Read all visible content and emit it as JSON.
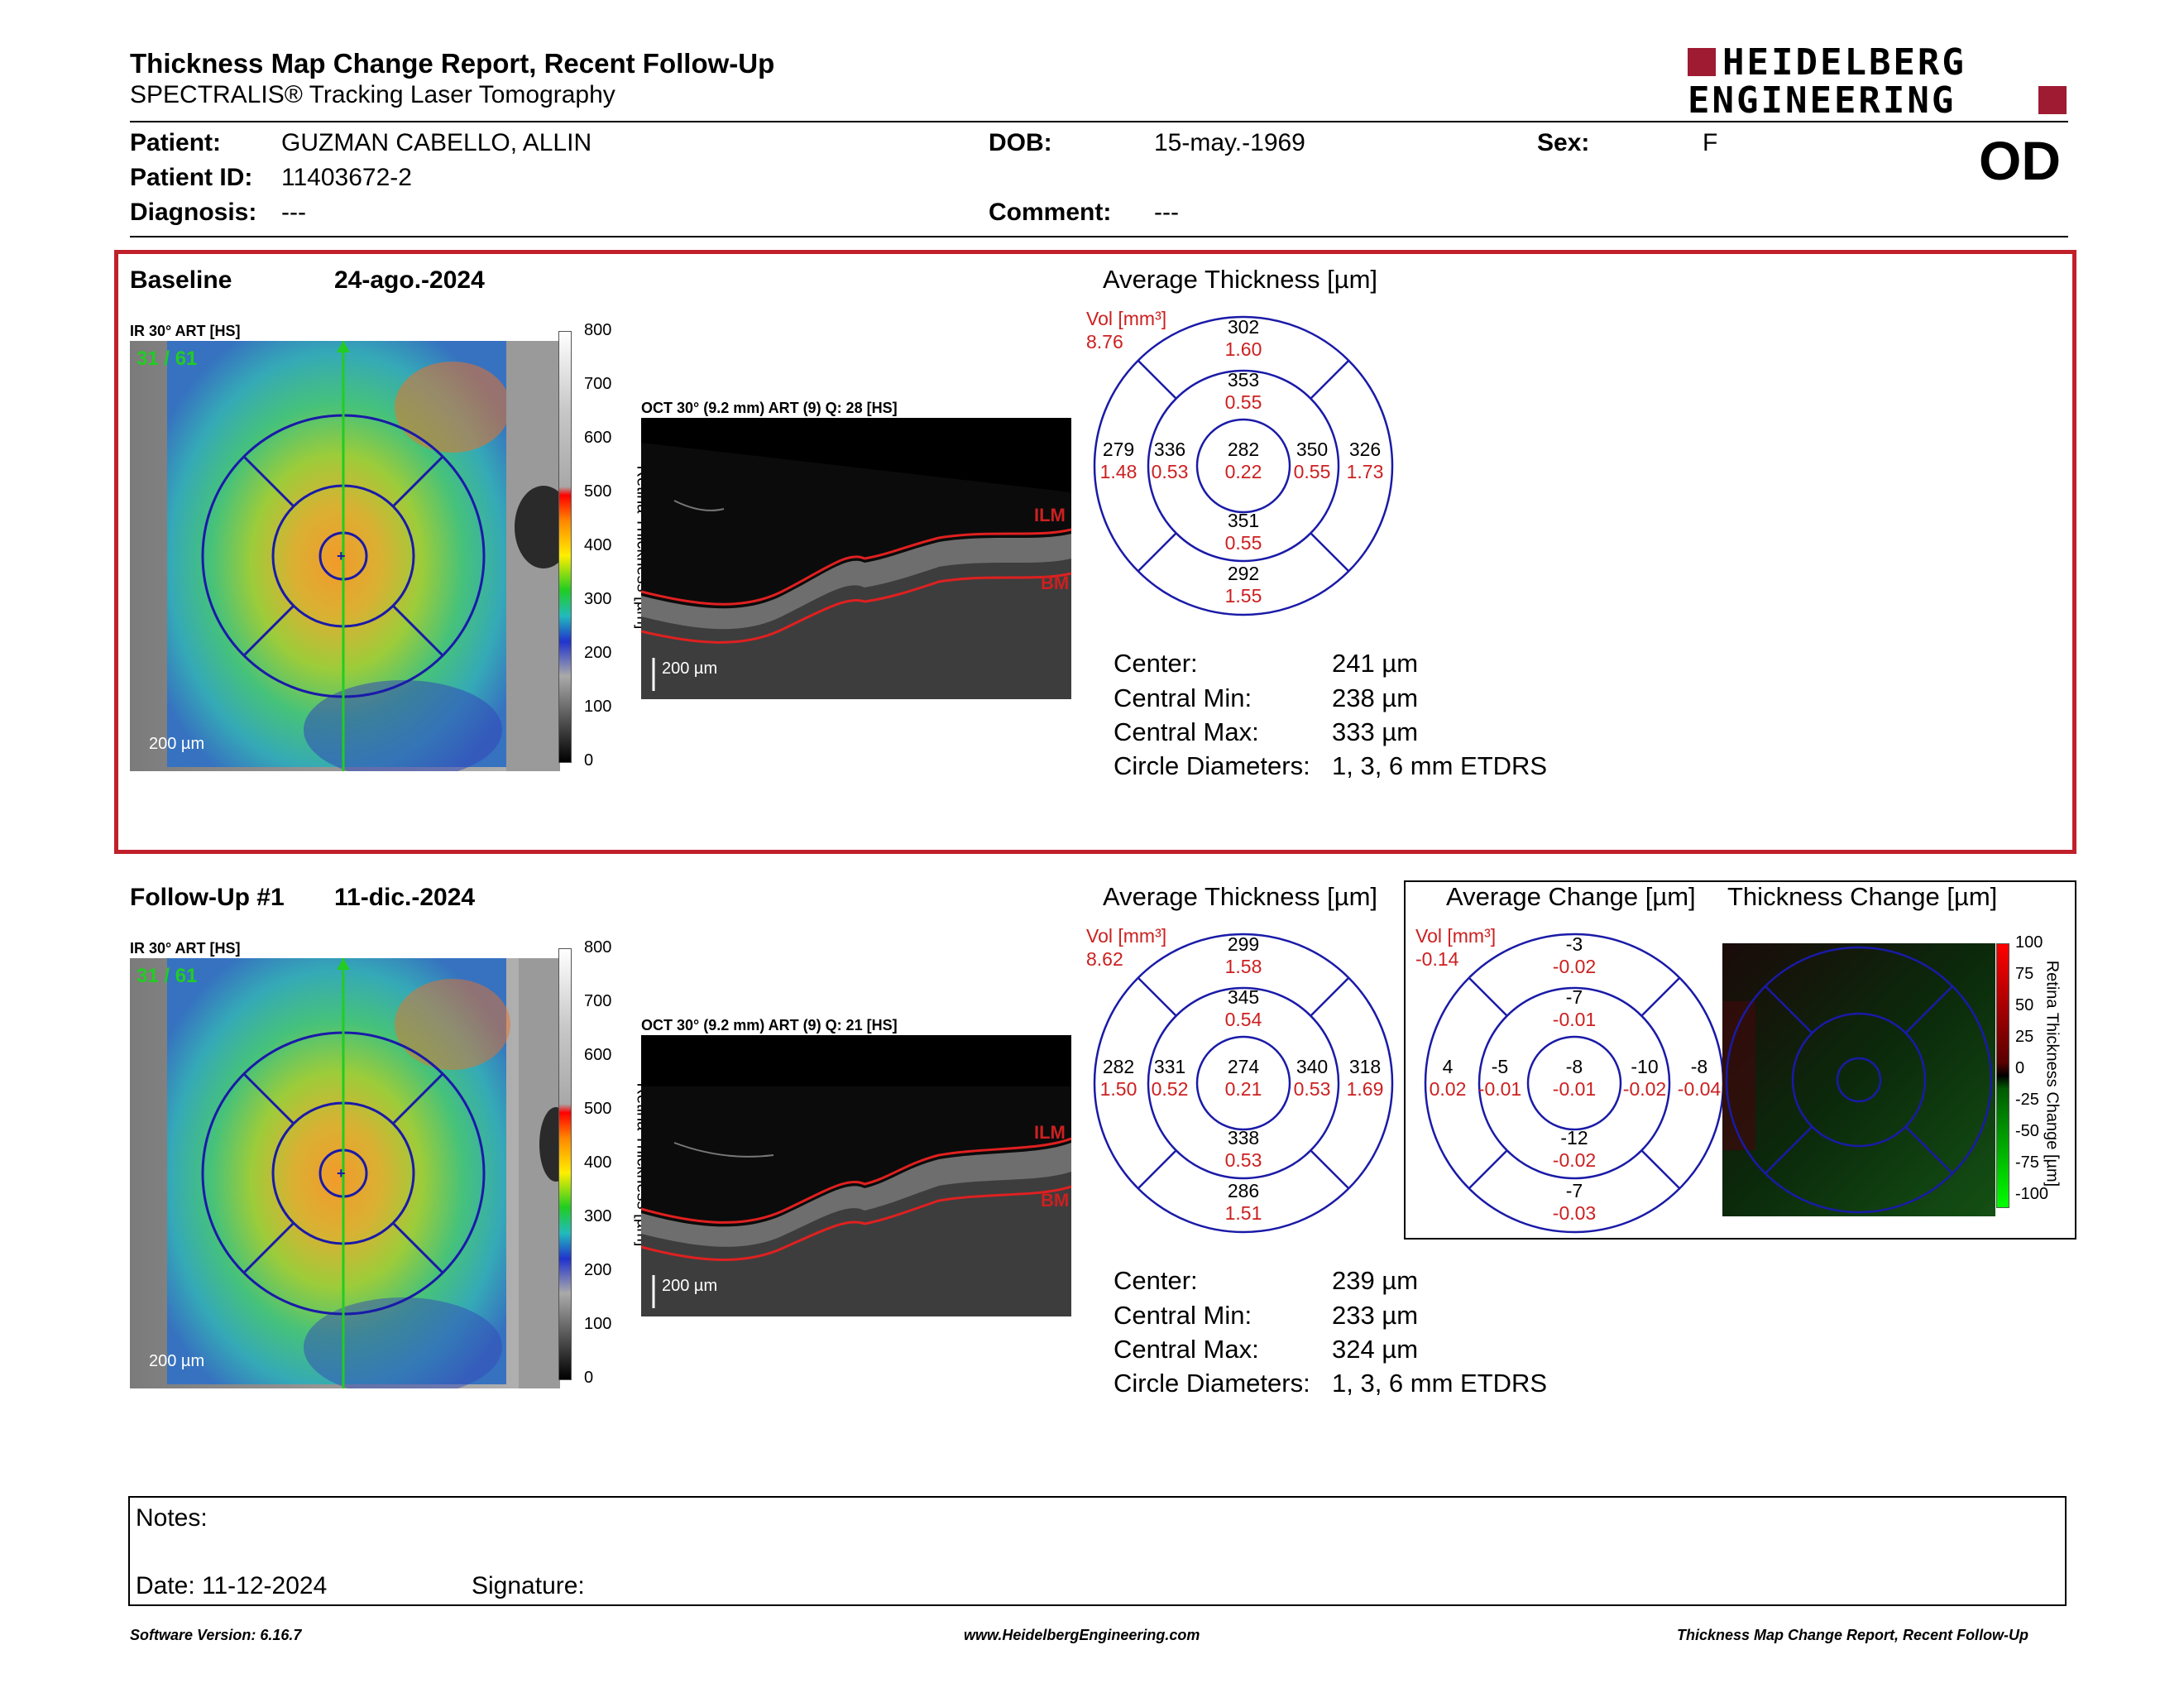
{
  "header": {
    "title": "Thickness Map Change Report, Recent Follow-Up",
    "subtitle": "SPECTRALIS® Tracking Laser Tomography",
    "logo_line1": "HEIDELBERG",
    "logo_line2": "ENGINEERING",
    "eye": "OD"
  },
  "patient": {
    "patient_label": "Patient:",
    "patient_value": "GUZMAN CABELLO, ALLIN",
    "id_label": "Patient ID:",
    "id_value": "11403672-2",
    "diagnosis_label": "Diagnosis:",
    "diagnosis_value": "---",
    "dob_label": "DOB:",
    "dob_value": "15-may.-1969",
    "comment_label": "Comment:",
    "comment_value": "---",
    "sex_label": "Sex:",
    "sex_value": "F"
  },
  "baseline": {
    "label": "Baseline",
    "date": "24-ago.-2024",
    "ir_label": "IR 30° ART [HS]",
    "ir_counter": "31 / 61",
    "scale_bar": "200 µm",
    "colorbar_ticks": [
      "800",
      "700",
      "600",
      "500",
      "400",
      "300",
      "200",
      "100",
      "0"
    ],
    "colorbar_title": "Retina Thickness [µm]",
    "oct_label": "OCT 30° (9.2 mm) ART (9) Q: 28 [HS]",
    "oct_scale": "200 µm",
    "ilm": "ILM",
    "bm": "BM",
    "avg_title": "Average Thickness [µm]",
    "vol_label": "Vol [mm³]",
    "vol_total": "8.76",
    "sectors": {
      "outer_sup": [
        "302",
        "1.60"
      ],
      "inner_sup": [
        "353",
        "0.55"
      ],
      "outer_temp": [
        "279",
        "1.48"
      ],
      "inner_temp": [
        "336",
        "0.53"
      ],
      "center": [
        "282",
        "0.22"
      ],
      "inner_nasal": [
        "350",
        "0.55"
      ],
      "outer_nasal": [
        "326",
        "1.73"
      ],
      "inner_inf": [
        "351",
        "0.55"
      ],
      "outer_inf": [
        "292",
        "1.55"
      ]
    },
    "stats": [
      {
        "label": "Center:",
        "value": "241 µm"
      },
      {
        "label": "Central Min:",
        "value": "238 µm"
      },
      {
        "label": "Central Max:",
        "value": "333 µm"
      },
      {
        "label": "Circle Diameters:",
        "value": "1, 3, 6 mm ETDRS"
      }
    ]
  },
  "followup": {
    "label": "Follow-Up #1",
    "date": "11-dic.-2024",
    "ir_label": "IR 30° ART [HS]",
    "ir_counter": "31 / 61",
    "scale_bar": "200 µm",
    "colorbar_ticks": [
      "800",
      "700",
      "600",
      "500",
      "400",
      "300",
      "200",
      "100",
      "0"
    ],
    "colorbar_title": "Retina Thickness [µm]",
    "oct_label": "OCT 30° (9.2 mm) ART (9) Q: 21 [HS]",
    "oct_scale": "200 µm",
    "ilm": "ILM",
    "bm": "BM",
    "avg_title": "Average Thickness [µm]",
    "vol_label": "Vol [mm³]",
    "vol_total": "8.62",
    "sectors": {
      "outer_sup": [
        "299",
        "1.58"
      ],
      "inner_sup": [
        "345",
        "0.54"
      ],
      "outer_temp": [
        "282",
        "1.50"
      ],
      "inner_temp": [
        "331",
        "0.52"
      ],
      "center": [
        "274",
        "0.21"
      ],
      "inner_nasal": [
        "340",
        "0.53"
      ],
      "outer_nasal": [
        "318",
        "1.69"
      ],
      "inner_inf": [
        "338",
        "0.53"
      ],
      "outer_inf": [
        "286",
        "1.51"
      ]
    },
    "stats": [
      {
        "label": "Center:",
        "value": "239 µm"
      },
      {
        "label": "Central Min:",
        "value": "233 µm"
      },
      {
        "label": "Central Max:",
        "value": "324 µm"
      },
      {
        "label": "Circle Diameters:",
        "value": "1, 3, 6 mm ETDRS"
      }
    ]
  },
  "change": {
    "avg_change_title": "Average Change [µm]",
    "thick_change_title": "Thickness Change [µm]",
    "vol_label": "Vol [mm³]",
    "vol_total": "-0.14",
    "sectors": {
      "outer_sup": [
        "-3",
        "-0.02"
      ],
      "inner_sup": [
        "-7",
        "-0.01"
      ],
      "outer_temp": [
        "4",
        "0.02"
      ],
      "inner_temp": [
        "-5",
        "-0.01"
      ],
      "center": [
        "-8",
        "-0.01"
      ],
      "inner_nasal": [
        "-10",
        "-0.02"
      ],
      "outer_nasal": [
        "-8",
        "-0.04"
      ],
      "inner_inf": [
        "-12",
        "-0.02"
      ],
      "outer_inf": [
        "-7",
        "-0.03"
      ]
    },
    "colorbar_ticks": [
      "100",
      "75",
      "50",
      "25",
      "0",
      "-25",
      "-50",
      "-75",
      "-100"
    ],
    "colorbar_title": "Retina Thickness Change [µm]"
  },
  "notes": {
    "notes_label": "Notes:",
    "date_label": "Date: 11-12-2024",
    "signature_label": "Signature:"
  },
  "footer": {
    "software": "Software Version: 6.16.7",
    "website": "www.HeidelbergEngineering.com",
    "report": "Thickness Map Change Report, Recent Follow-Up"
  },
  "colors": {
    "accent_red": "#c0202a",
    "etdrs_blue": "#1a1aa8",
    "value_red": "#cc2020",
    "center_line_green": "#22cc22"
  }
}
